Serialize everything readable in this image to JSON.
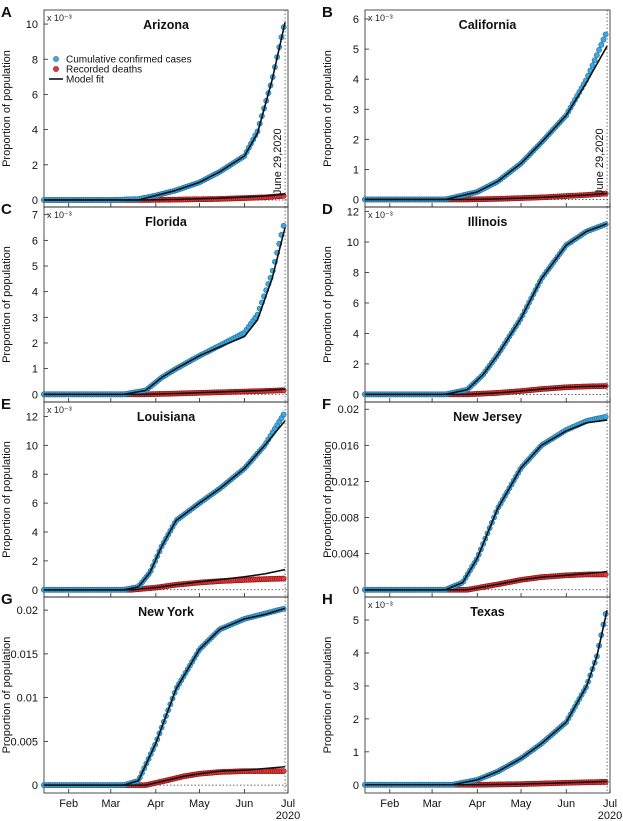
{
  "figure": {
    "ylabel": "Proportion of population",
    "legend": {
      "placement": "top-left",
      "entries": [
        "Cumulative confirmed cases",
        "Recorded deaths",
        "Model fit"
      ]
    },
    "annotation": "June 29,2020",
    "month_ticks": [
      "Feb",
      "Mar",
      "Apr",
      "May",
      "Jun",
      "Jul"
    ],
    "year_label": "2020",
    "colors": {
      "cases": "#3fa9df",
      "cases_edge": "#1d6fa0",
      "deaths": "#e53a3a",
      "deaths_edge": "#8a1010",
      "fit": "#111111"
    }
  },
  "chart_data": [
    {
      "panel": "A",
      "title": "Arizona",
      "type": "scatter",
      "exponent": "x 10⁻³",
      "ylim": [
        -0.4,
        10.8
      ],
      "yticks": [
        0,
        2,
        4,
        6,
        8,
        10
      ],
      "series": [
        {
          "name": "Cumulative confirmed cases",
          "x": [
            "2020-01-15",
            "2020-03-01",
            "2020-03-20",
            "2020-04-01",
            "2020-04-15",
            "2020-05-01",
            "2020-05-15",
            "2020-06-01",
            "2020-06-10",
            "2020-06-20",
            "2020-06-29"
          ],
          "y": [
            0,
            0,
            0.05,
            0.25,
            0.55,
            1.0,
            1.6,
            2.5,
            3.9,
            6.8,
            10.2
          ]
        },
        {
          "name": "Recorded deaths",
          "x": [
            "2020-01-15",
            "2020-03-25",
            "2020-04-15",
            "2020-05-15",
            "2020-06-15",
            "2020-06-29"
          ],
          "y": [
            0,
            0,
            0.02,
            0.06,
            0.15,
            0.24
          ]
        },
        {
          "name": "Model fit",
          "x": [
            "2020-01-15",
            "2020-03-20",
            "2020-04-01",
            "2020-04-15",
            "2020-05-01",
            "2020-05-15",
            "2020-06-01",
            "2020-06-10",
            "2020-06-20",
            "2020-06-29"
          ],
          "y": [
            0,
            0,
            0.25,
            0.55,
            1.0,
            1.6,
            2.5,
            3.8,
            6.8,
            10.1
          ]
        },
        {
          "name": "Model fit deaths",
          "x": [
            "2020-01-15",
            "2020-03-25",
            "2020-04-15",
            "2020-05-15",
            "2020-06-15",
            "2020-06-29"
          ],
          "y": [
            0,
            0,
            0.03,
            0.1,
            0.22,
            0.33
          ]
        }
      ]
    },
    {
      "panel": "B",
      "title": "California",
      "type": "scatter",
      "exponent": "x 10⁻³",
      "ylim": [
        -0.25,
        6.3
      ],
      "yticks": [
        0,
        1,
        2,
        3,
        4,
        5,
        6
      ],
      "series": [
        {
          "name": "Cumulative confirmed cases",
          "x": [
            "2020-01-15",
            "2020-03-10",
            "2020-04-01",
            "2020-04-15",
            "2020-05-01",
            "2020-05-15",
            "2020-06-01",
            "2020-06-15",
            "2020-06-29"
          ],
          "y": [
            0,
            0,
            0.25,
            0.6,
            1.2,
            1.9,
            2.8,
            4.0,
            5.6
          ]
        },
        {
          "name": "Recorded deaths",
          "x": [
            "2020-01-15",
            "2020-03-25",
            "2020-04-15",
            "2020-05-15",
            "2020-06-15",
            "2020-06-29"
          ],
          "y": [
            0,
            0,
            0.02,
            0.07,
            0.15,
            0.2
          ]
        },
        {
          "name": "Model fit",
          "x": [
            "2020-01-15",
            "2020-03-10",
            "2020-04-01",
            "2020-04-15",
            "2020-05-01",
            "2020-05-15",
            "2020-06-01",
            "2020-06-15",
            "2020-06-29"
          ],
          "y": [
            0,
            0,
            0.25,
            0.6,
            1.2,
            1.9,
            2.8,
            3.9,
            5.1
          ]
        },
        {
          "name": "Model fit deaths",
          "x": [
            "2020-01-15",
            "2020-03-25",
            "2020-04-15",
            "2020-05-15",
            "2020-06-15",
            "2020-06-29"
          ],
          "y": [
            0,
            0,
            0.02,
            0.07,
            0.15,
            0.2
          ]
        }
      ]
    },
    {
      "panel": "C",
      "title": "Florida",
      "type": "scatter",
      "exponent": "x 10⁻³",
      "ylim": [
        -0.3,
        7.3
      ],
      "yticks": [
        0,
        1,
        2,
        3,
        4,
        5,
        6,
        7
      ],
      "series": [
        {
          "name": "Cumulative confirmed cases",
          "x": [
            "2020-01-15",
            "2020-03-10",
            "2020-03-25",
            "2020-04-05",
            "2020-04-15",
            "2020-05-01",
            "2020-05-15",
            "2020-06-01",
            "2020-06-10",
            "2020-06-20",
            "2020-06-29"
          ],
          "y": [
            0,
            0,
            0.15,
            0.65,
            1.0,
            1.5,
            1.9,
            2.4,
            3.1,
            4.7,
            6.8
          ]
        },
        {
          "name": "Recorded deaths",
          "x": [
            "2020-01-15",
            "2020-03-25",
            "2020-04-15",
            "2020-05-15",
            "2020-06-15",
            "2020-06-29"
          ],
          "y": [
            0,
            0,
            0.03,
            0.08,
            0.13,
            0.16
          ]
        },
        {
          "name": "Model fit",
          "x": [
            "2020-01-15",
            "2020-03-10",
            "2020-03-25",
            "2020-04-05",
            "2020-04-15",
            "2020-05-01",
            "2020-05-15",
            "2020-06-01",
            "2020-06-10",
            "2020-06-20",
            "2020-06-29"
          ],
          "y": [
            0,
            0,
            0.15,
            0.65,
            1.0,
            1.5,
            1.85,
            2.25,
            2.9,
            4.5,
            6.5
          ]
        },
        {
          "name": "Model fit deaths",
          "x": [
            "2020-01-15",
            "2020-03-25",
            "2020-04-15",
            "2020-05-15",
            "2020-06-15",
            "2020-06-29"
          ],
          "y": [
            0,
            0,
            0.03,
            0.09,
            0.15,
            0.2
          ]
        }
      ]
    },
    {
      "panel": "D",
      "title": "Illinois",
      "type": "scatter",
      "exponent": "x 10⁻³",
      "ylim": [
        -0.5,
        12.3
      ],
      "yticks": [
        0,
        2,
        4,
        6,
        8,
        10,
        12
      ],
      "series": [
        {
          "name": "Cumulative confirmed cases",
          "x": [
            "2020-01-15",
            "2020-03-10",
            "2020-03-25",
            "2020-04-05",
            "2020-04-15",
            "2020-05-01",
            "2020-05-15",
            "2020-06-01",
            "2020-06-15",
            "2020-06-29"
          ],
          "y": [
            0,
            0,
            0.3,
            1.3,
            2.6,
            5.0,
            7.6,
            9.8,
            10.7,
            11.2
          ]
        },
        {
          "name": "Recorded deaths",
          "x": [
            "2020-01-15",
            "2020-03-25",
            "2020-04-15",
            "2020-05-01",
            "2020-05-15",
            "2020-06-01",
            "2020-06-15",
            "2020-06-29"
          ],
          "y": [
            0,
            0,
            0.1,
            0.22,
            0.35,
            0.47,
            0.52,
            0.55
          ]
        },
        {
          "name": "Model fit",
          "x": [
            "2020-01-15",
            "2020-03-10",
            "2020-03-25",
            "2020-04-05",
            "2020-04-15",
            "2020-05-01",
            "2020-05-15",
            "2020-06-01",
            "2020-06-15",
            "2020-06-29"
          ],
          "y": [
            0,
            0,
            0.3,
            1.3,
            2.6,
            5.0,
            7.6,
            9.8,
            10.7,
            11.2
          ]
        },
        {
          "name": "Model fit deaths",
          "x": [
            "2020-01-15",
            "2020-03-25",
            "2020-04-15",
            "2020-05-01",
            "2020-05-15",
            "2020-06-01",
            "2020-06-15",
            "2020-06-29"
          ],
          "y": [
            0,
            0,
            0.1,
            0.22,
            0.35,
            0.47,
            0.52,
            0.55
          ]
        }
      ]
    },
    {
      "panel": "E",
      "title": "Louisiana",
      "type": "scatter",
      "exponent": "x 10⁻³",
      "ylim": [
        -0.5,
        13.0
      ],
      "yticks": [
        0,
        2,
        4,
        6,
        8,
        10,
        12
      ],
      "series": [
        {
          "name": "Cumulative confirmed cases",
          "x": [
            "2020-01-15",
            "2020-03-10",
            "2020-03-20",
            "2020-03-28",
            "2020-04-05",
            "2020-04-15",
            "2020-05-01",
            "2020-05-15",
            "2020-06-01",
            "2020-06-15",
            "2020-06-29"
          ],
          "y": [
            0,
            0,
            0.2,
            1.2,
            3.0,
            4.8,
            6.0,
            7.0,
            8.4,
            10.0,
            12.3
          ]
        },
        {
          "name": "Recorded deaths",
          "x": [
            "2020-01-15",
            "2020-03-15",
            "2020-04-01",
            "2020-04-15",
            "2020-05-01",
            "2020-05-15",
            "2020-06-01",
            "2020-06-15",
            "2020-06-29"
          ],
          "y": [
            0,
            0,
            0.15,
            0.35,
            0.5,
            0.6,
            0.68,
            0.74,
            0.78
          ]
        },
        {
          "name": "Model fit",
          "x": [
            "2020-01-15",
            "2020-03-10",
            "2020-03-20",
            "2020-03-28",
            "2020-04-05",
            "2020-04-15",
            "2020-05-01",
            "2020-05-15",
            "2020-06-01",
            "2020-06-15",
            "2020-06-29"
          ],
          "y": [
            0,
            0,
            0.2,
            1.2,
            3.0,
            4.8,
            6.0,
            7.0,
            8.4,
            10.0,
            11.7
          ]
        },
        {
          "name": "Model fit deaths",
          "x": [
            "2020-01-15",
            "2020-03-15",
            "2020-04-01",
            "2020-04-15",
            "2020-05-01",
            "2020-05-15",
            "2020-06-01",
            "2020-06-15",
            "2020-06-29"
          ],
          "y": [
            0,
            0,
            0.15,
            0.35,
            0.55,
            0.7,
            0.9,
            1.1,
            1.4
          ]
        }
      ]
    },
    {
      "panel": "F",
      "title": "New Jersey",
      "type": "scatter",
      "exponent": "",
      "ylim": [
        -0.0008,
        0.0208
      ],
      "yticks": [
        0,
        0.004,
        0.008,
        0.012,
        0.016,
        0.02
      ],
      "series": [
        {
          "name": "Cumulative confirmed cases",
          "x": [
            "2020-01-15",
            "2020-03-10",
            "2020-03-22",
            "2020-04-01",
            "2020-04-15",
            "2020-05-01",
            "2020-05-15",
            "2020-06-01",
            "2020-06-15",
            "2020-06-29"
          ],
          "y": [
            0,
            0,
            0.0008,
            0.0035,
            0.009,
            0.0135,
            0.016,
            0.0177,
            0.0187,
            0.0192
          ]
        },
        {
          "name": "Recorded deaths",
          "x": [
            "2020-01-15",
            "2020-03-25",
            "2020-04-15",
            "2020-05-01",
            "2020-05-15",
            "2020-06-01",
            "2020-06-15",
            "2020-06-29"
          ],
          "y": [
            0,
            0,
            0.0006,
            0.0011,
            0.0014,
            0.0016,
            0.0017,
            0.0017
          ]
        },
        {
          "name": "Model fit",
          "x": [
            "2020-01-15",
            "2020-03-10",
            "2020-03-22",
            "2020-04-01",
            "2020-04-15",
            "2020-05-01",
            "2020-05-15",
            "2020-06-01",
            "2020-06-15",
            "2020-06-29"
          ],
          "y": [
            0,
            0,
            0.0008,
            0.0035,
            0.009,
            0.0135,
            0.016,
            0.0176,
            0.0185,
            0.0188
          ]
        },
        {
          "name": "Model fit deaths",
          "x": [
            "2020-01-15",
            "2020-03-25",
            "2020-04-15",
            "2020-05-01",
            "2020-05-15",
            "2020-06-01",
            "2020-06-15",
            "2020-06-29"
          ],
          "y": [
            0,
            0,
            0.0006,
            0.0011,
            0.0014,
            0.0016,
            0.0018,
            0.002
          ]
        }
      ]
    },
    {
      "panel": "G",
      "title": "New York",
      "type": "scatter",
      "exponent": "",
      "ylim": [
        -0.0009,
        0.0215
      ],
      "yticks": [
        0,
        0.005,
        0.01,
        0.015,
        0.02
      ],
      "series": [
        {
          "name": "Cumulative confirmed cases",
          "x": [
            "2020-01-15",
            "2020-03-10",
            "2020-03-20",
            "2020-04-01",
            "2020-04-15",
            "2020-05-01",
            "2020-05-15",
            "2020-06-01",
            "2020-06-15",
            "2020-06-29"
          ],
          "y": [
            0,
            0,
            0.0005,
            0.0048,
            0.011,
            0.0155,
            0.0178,
            0.019,
            0.0196,
            0.0202
          ]
        },
        {
          "name": "Recorded deaths",
          "x": [
            "2020-01-15",
            "2020-03-25",
            "2020-04-10",
            "2020-04-20",
            "2020-05-01",
            "2020-05-15",
            "2020-06-01",
            "2020-06-15",
            "2020-06-29"
          ],
          "y": [
            0,
            0,
            0.0006,
            0.001,
            0.0013,
            0.0015,
            0.0016,
            0.0016,
            0.0016
          ]
        },
        {
          "name": "Model fit",
          "x": [
            "2020-01-15",
            "2020-03-10",
            "2020-03-20",
            "2020-04-01",
            "2020-04-15",
            "2020-05-01",
            "2020-05-15",
            "2020-06-01",
            "2020-06-15",
            "2020-06-29"
          ],
          "y": [
            0,
            0,
            0.0005,
            0.0048,
            0.011,
            0.0155,
            0.0178,
            0.019,
            0.0195,
            0.0202
          ]
        },
        {
          "name": "Model fit deaths",
          "x": [
            "2020-01-15",
            "2020-03-25",
            "2020-04-10",
            "2020-04-20",
            "2020-05-01",
            "2020-05-15",
            "2020-06-01",
            "2020-06-15",
            "2020-06-29"
          ],
          "y": [
            0,
            0,
            0.0006,
            0.001,
            0.0013,
            0.0016,
            0.0017,
            0.0019,
            0.0021
          ]
        }
      ]
    },
    {
      "panel": "H",
      "title": "Texas",
      "type": "scatter",
      "exponent": "x 10⁻³",
      "ylim": [
        -0.25,
        5.7
      ],
      "yticks": [
        0,
        1,
        2,
        3,
        4,
        5
      ],
      "series": [
        {
          "name": "Cumulative confirmed cases",
          "x": [
            "2020-01-15",
            "2020-03-15",
            "2020-04-01",
            "2020-04-15",
            "2020-05-01",
            "2020-05-15",
            "2020-06-01",
            "2020-06-15",
            "2020-06-22",
            "2020-06-29"
          ],
          "y": [
            0,
            0,
            0.15,
            0.4,
            0.8,
            1.25,
            1.9,
            3.0,
            3.9,
            5.4
          ]
        },
        {
          "name": "Recorded deaths",
          "x": [
            "2020-01-15",
            "2020-04-01",
            "2020-05-01",
            "2020-06-01",
            "2020-06-29"
          ],
          "y": [
            0,
            0,
            0.02,
            0.06,
            0.09
          ]
        },
        {
          "name": "Model fit",
          "x": [
            "2020-01-15",
            "2020-03-15",
            "2020-04-01",
            "2020-04-15",
            "2020-05-01",
            "2020-05-15",
            "2020-06-01",
            "2020-06-15",
            "2020-06-22",
            "2020-06-29"
          ],
          "y": [
            0,
            0,
            0.15,
            0.4,
            0.8,
            1.25,
            1.9,
            3.0,
            3.9,
            5.3
          ]
        },
        {
          "name": "Model fit deaths",
          "x": [
            "2020-01-15",
            "2020-04-01",
            "2020-05-01",
            "2020-06-01",
            "2020-06-29"
          ],
          "y": [
            0,
            0,
            0.02,
            0.06,
            0.1
          ]
        }
      ]
    }
  ]
}
